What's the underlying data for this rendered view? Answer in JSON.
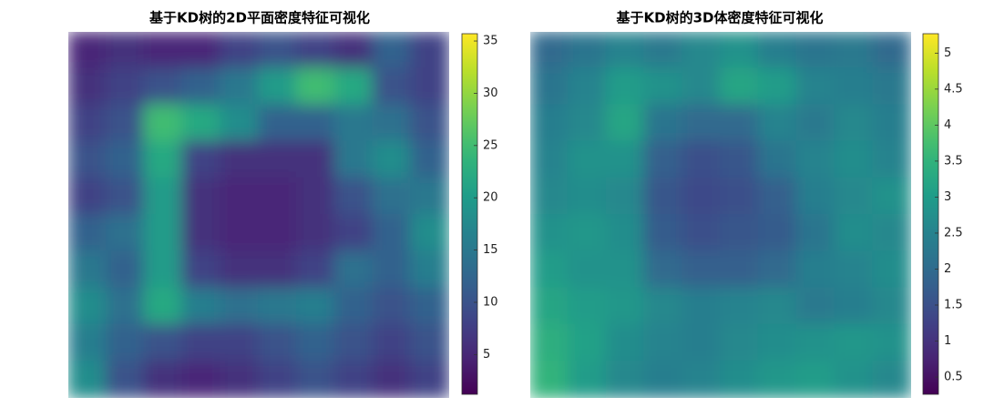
{
  "chart_data": [
    {
      "type": "heatmap",
      "title": "基于KD树的2D平面密度特征可视化",
      "colormap": "viridis",
      "clim": [
        1.2,
        35.7
      ],
      "cticks": [
        5,
        10,
        15,
        20,
        25,
        30,
        35
      ],
      "values": [
        [
          5,
          6,
          5,
          5,
          8,
          10,
          8,
          6,
          12,
          8
        ],
        [
          6,
          8,
          10,
          12,
          15,
          20,
          25,
          22,
          10,
          8
        ],
        [
          8,
          10,
          25,
          22,
          18,
          12,
          12,
          15,
          14,
          10
        ],
        [
          10,
          12,
          22,
          8,
          6,
          6,
          6,
          15,
          18,
          12
        ],
        [
          8,
          10,
          20,
          6,
          5,
          5,
          6,
          10,
          14,
          15
        ],
        [
          12,
          14,
          20,
          6,
          5,
          5,
          6,
          8,
          12,
          18
        ],
        [
          15,
          12,
          20,
          8,
          6,
          6,
          8,
          14,
          12,
          16
        ],
        [
          18,
          14,
          22,
          16,
          14,
          15,
          16,
          12,
          10,
          12
        ],
        [
          16,
          12,
          10,
          8,
          8,
          10,
          12,
          10,
          8,
          10
        ],
        [
          18,
          10,
          6,
          5,
          6,
          8,
          10,
          8,
          6,
          8
        ]
      ]
    },
    {
      "type": "heatmap",
      "title": "基于KD树的3D体密度特征可视化",
      "colormap": "viridis",
      "clim": [
        0.26,
        5.27
      ],
      "cticks": [
        0.5,
        1,
        1.5,
        2,
        2.5,
        3,
        3.5,
        4,
        4.5,
        5
      ],
      "values": [
        [
          2,
          2.2,
          2.5,
          2.3,
          2.6,
          2.8,
          2.4,
          2.2,
          2.3,
          2
        ],
        [
          2.2,
          2.5,
          3,
          2.8,
          2.6,
          3.2,
          3,
          2.5,
          2.4,
          2.3
        ],
        [
          2.4,
          2.6,
          3.2,
          2.2,
          2,
          2,
          2.5,
          2.3,
          2.6,
          2.4
        ],
        [
          2.5,
          2.8,
          2.8,
          1.8,
          1.5,
          1.6,
          2.2,
          2.5,
          2.7,
          2.5
        ],
        [
          2.6,
          2.7,
          2.6,
          1.6,
          1.4,
          1.5,
          1.8,
          2.4,
          2.6,
          2.8
        ],
        [
          2.8,
          2.9,
          2.7,
          1.7,
          1.5,
          1.6,
          1.7,
          2.2,
          2.7,
          2.6
        ],
        [
          3,
          2.8,
          2.8,
          2,
          1.8,
          1.8,
          2,
          2.4,
          2.5,
          2.7
        ],
        [
          3.2,
          3,
          2.9,
          2.6,
          2.4,
          2.5,
          2.6,
          2.3,
          2.4,
          2.6
        ],
        [
          3.4,
          3.1,
          2.7,
          2.5,
          2.4,
          2.6,
          2.7,
          2.8,
          2.9,
          2.8
        ],
        [
          3.5,
          3,
          2.6,
          2.4,
          2.5,
          2.7,
          2.9,
          3,
          2.8,
          2.6
        ]
      ]
    }
  ]
}
